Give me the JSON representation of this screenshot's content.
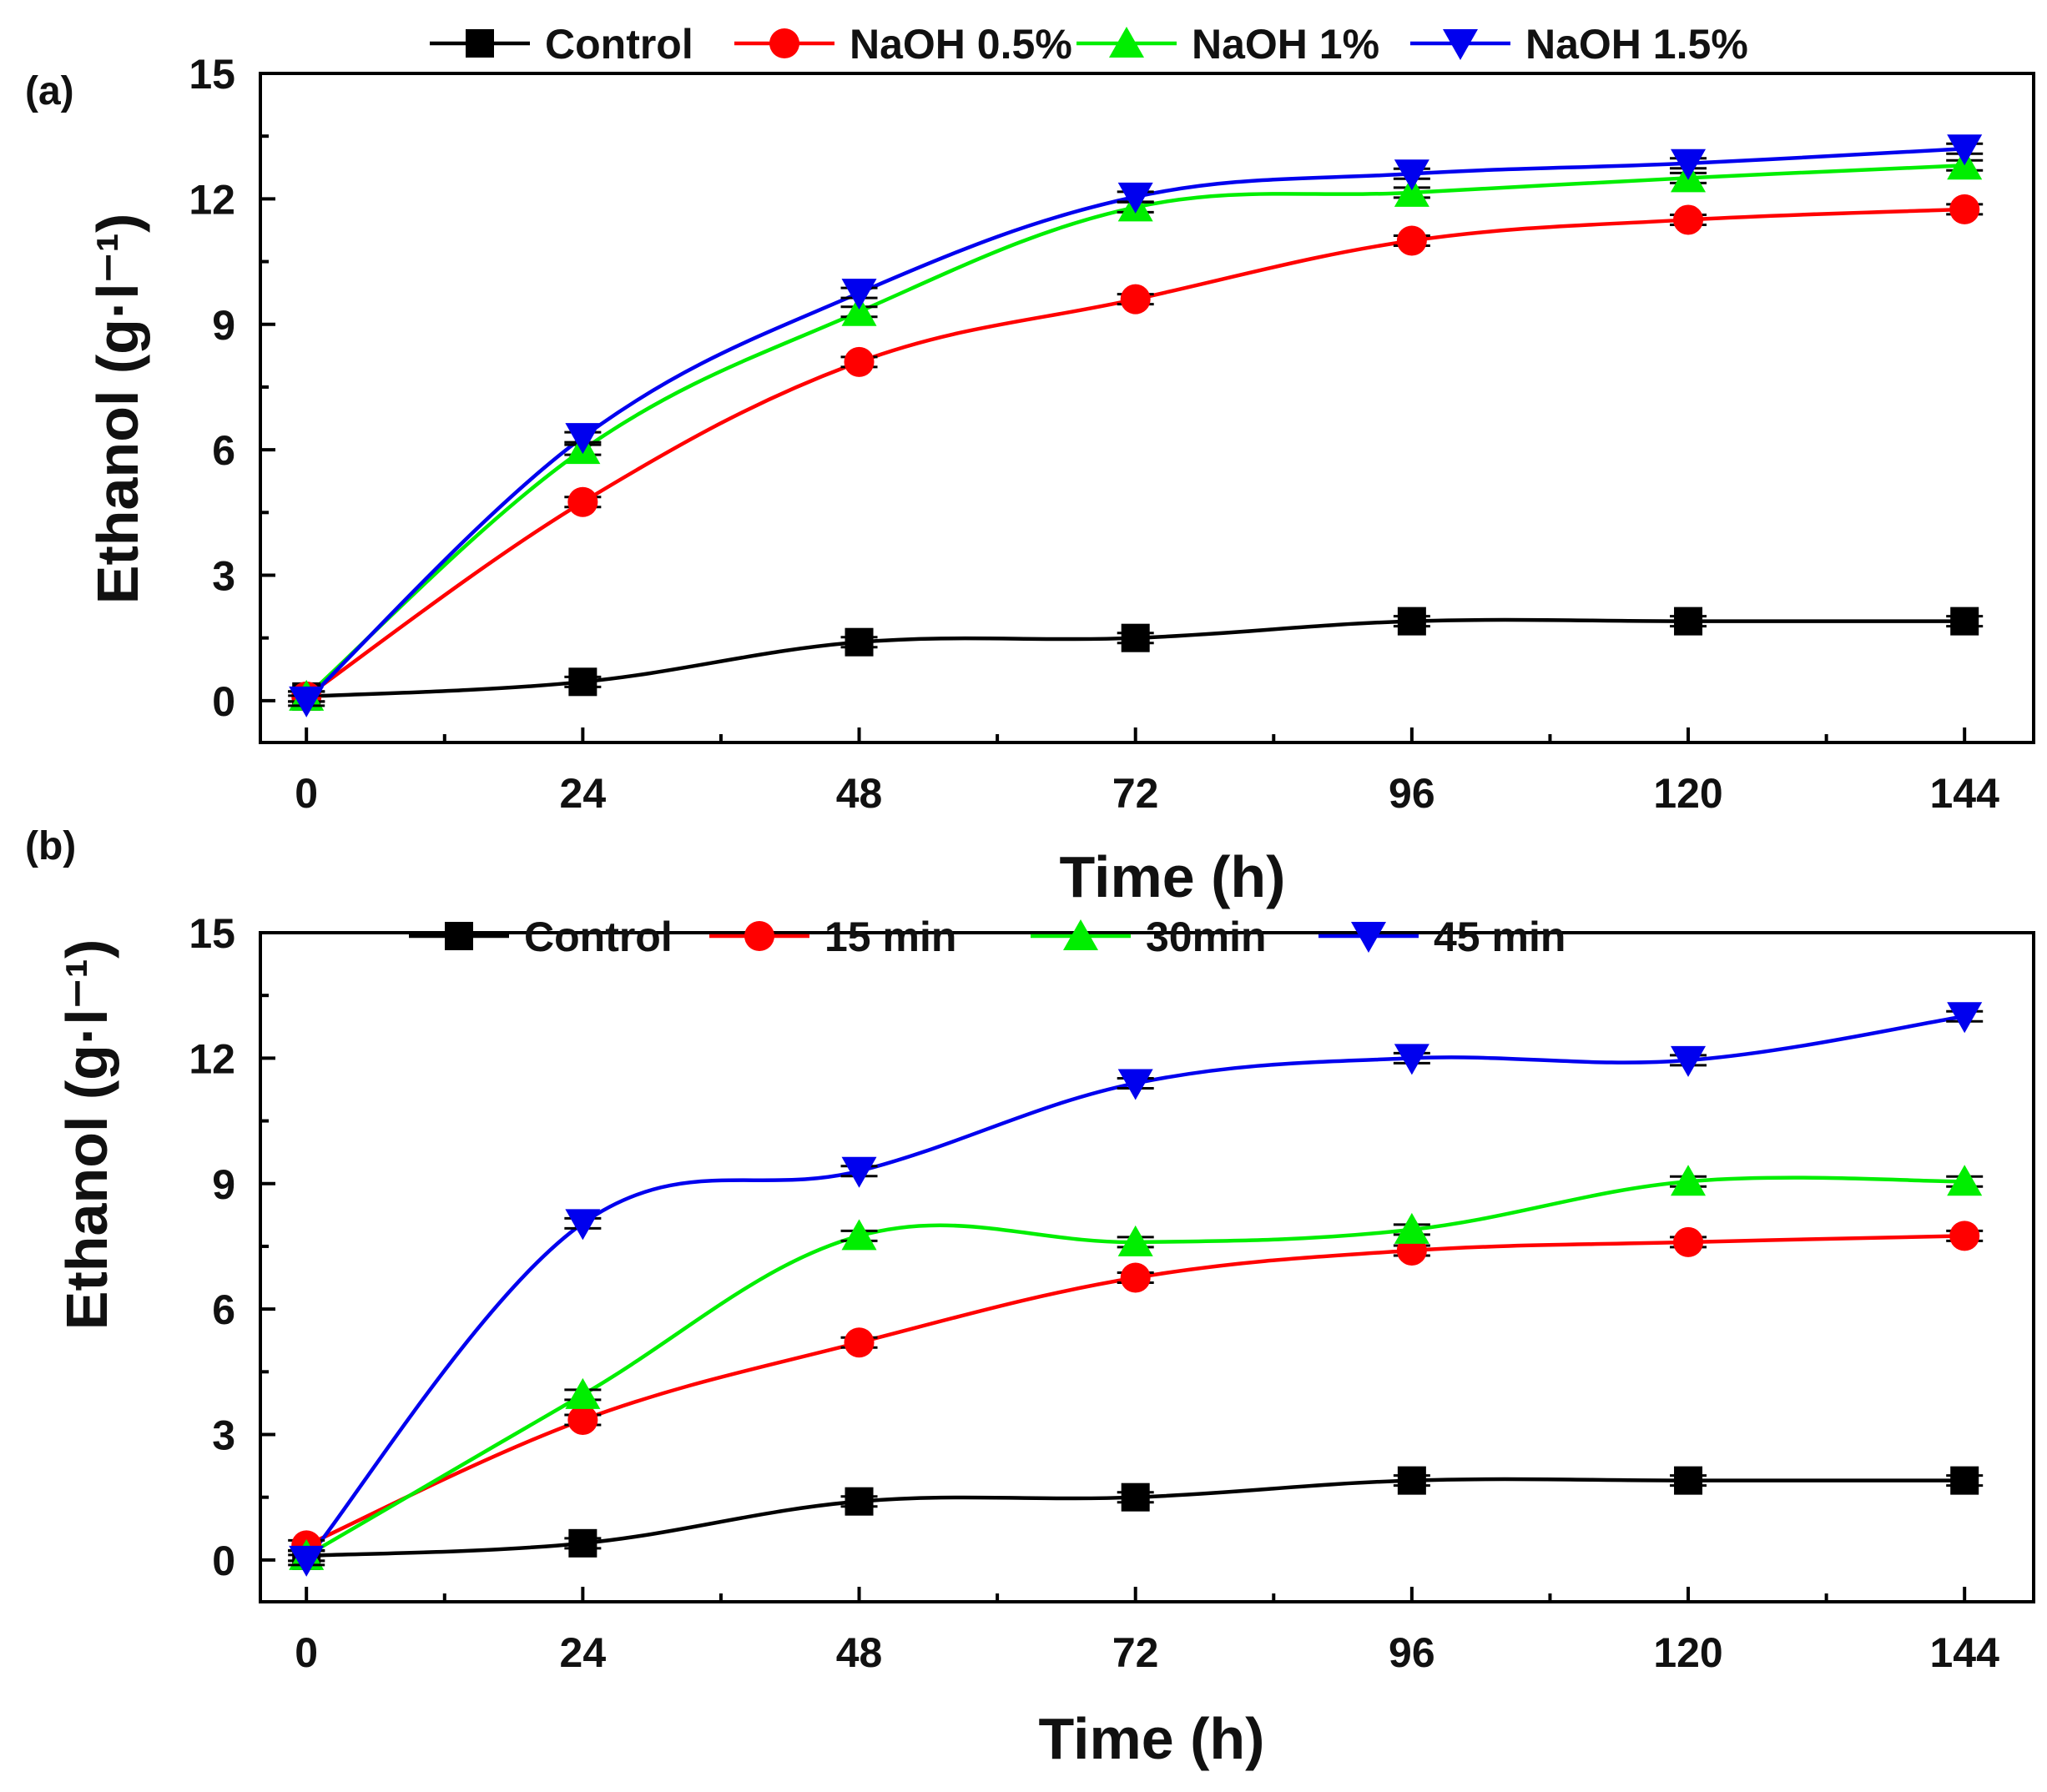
{
  "chart_data": [
    {
      "type": "line",
      "panel_label": "(a)",
      "xlabel": "Time (h)",
      "ylabel": "Ethanol (g·l⁻¹)",
      "x": [
        0,
        24,
        48,
        72,
        96,
        120,
        144
      ],
      "x_ticks": [
        "0",
        "24",
        "48",
        "72",
        "96",
        "120",
        "144"
      ],
      "y_ticks": [
        "0",
        "3",
        "6",
        "9",
        "12",
        "15"
      ],
      "xlim": [
        -4,
        150
      ],
      "ylim": [
        -1,
        15
      ],
      "legend_position": "top",
      "grid": false,
      "series": [
        {
          "name": "Control",
          "values": [
            0.1,
            0.45,
            1.4,
            1.5,
            1.9,
            1.9,
            1.9
          ],
          "color": "#000000",
          "marker": "square"
        },
        {
          "name": "NaOH 0.5%",
          "values": [
            0.1,
            4.75,
            8.1,
            9.6,
            11.0,
            11.5,
            11.75
          ],
          "color": "#ff0000",
          "marker": "circle"
        },
        {
          "name": "NaOH 1%",
          "values": [
            0.1,
            6.0,
            9.3,
            11.8,
            12.15,
            12.5,
            12.8
          ],
          "color": "#00ee00",
          "marker": "triangle-up"
        },
        {
          "name": "NaOH 1.5%",
          "values": [
            0.0,
            6.3,
            9.75,
            12.05,
            12.6,
            12.85,
            13.2
          ],
          "color": "#0000ee",
          "marker": "triangle-down"
        }
      ]
    },
    {
      "type": "line",
      "panel_label": "(b)",
      "xlabel": "Time (h)",
      "ylabel": "Ethanol (g·l⁻¹)",
      "x": [
        0,
        24,
        48,
        72,
        96,
        120,
        144
      ],
      "x_ticks": [
        "0",
        "24",
        "48",
        "72",
        "96",
        "120",
        "144"
      ],
      "y_ticks": [
        "0",
        "3",
        "6",
        "9",
        "12",
        "15"
      ],
      "xlim": [
        -4,
        150
      ],
      "ylim": [
        -1,
        15
      ],
      "legend_position": "top",
      "grid": false,
      "series": [
        {
          "name": "Control",
          "values": [
            0.1,
            0.4,
            1.4,
            1.5,
            1.9,
            1.9,
            1.9
          ],
          "color": "#000000",
          "marker": "square"
        },
        {
          "name": "15 min",
          "values": [
            0.35,
            3.35,
            5.2,
            6.75,
            7.4,
            7.6,
            7.75
          ],
          "color": "#ff0000",
          "marker": "circle"
        },
        {
          "name": "30min",
          "values": [
            0.1,
            3.95,
            7.75,
            7.6,
            7.9,
            9.05,
            9.05
          ],
          "color": "#00ee00",
          "marker": "triangle-up"
        },
        {
          "name": "45 min",
          "values": [
            0.0,
            8.05,
            9.3,
            11.4,
            12.0,
            11.95,
            13.0
          ],
          "color": "#0000ee",
          "marker": "triangle-down"
        }
      ]
    }
  ]
}
